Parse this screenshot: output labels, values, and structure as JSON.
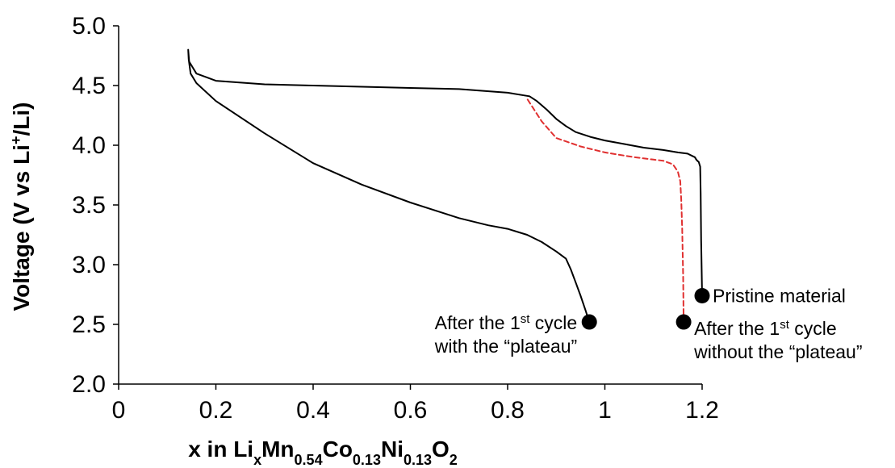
{
  "chart_data": {
    "type": "line",
    "xlabel": {
      "parts": [
        {
          "text": "x in Li",
          "sub": false
        },
        {
          "text": "x",
          "sub": true
        },
        {
          "text": "Mn",
          "sub": false
        },
        {
          "text": "0.54",
          "sub": true
        },
        {
          "text": "Co",
          "sub": false
        },
        {
          "text": "0.13",
          "sub": true
        },
        {
          "text": "Ni",
          "sub": false
        },
        {
          "text": "0.13",
          "sub": true
        },
        {
          "text": "O",
          "sub": false
        },
        {
          "text": "2",
          "sub": true
        }
      ]
    },
    "ylabel": {
      "before": "Voltage (V vs Li",
      "sup": "+",
      "after": "/Li)"
    },
    "xlim": [
      0,
      1.2
    ],
    "ylim": [
      2.0,
      5.0
    ],
    "xticks": [
      {
        "value": 0,
        "label": "0"
      },
      {
        "value": 0.2,
        "label": "0.2"
      },
      {
        "value": 0.4,
        "label": "0.4"
      },
      {
        "value": 0.6,
        "label": "0.6"
      },
      {
        "value": 0.8,
        "label": "0.8"
      },
      {
        "value": 1.0,
        "label": "1"
      },
      {
        "value": 1.2,
        "label": "1.2"
      }
    ],
    "yticks": [
      {
        "value": 2.0,
        "label": "2.0"
      },
      {
        "value": 2.5,
        "label": "2.5"
      },
      {
        "value": 3.0,
        "label": "3.0"
      },
      {
        "value": 3.5,
        "label": "3.5"
      },
      {
        "value": 4.0,
        "label": "4.0"
      },
      {
        "value": 4.5,
        "label": "4.5"
      },
      {
        "value": 5.0,
        "label": "5.0"
      }
    ],
    "grid": false,
    "series": [
      {
        "id": "cycle-with-plateau",
        "color": "#000000",
        "dash": false,
        "x": [
          1.2,
          1.198,
          1.197,
          1.196,
          1.193,
          1.19,
          1.188,
          1.185,
          1.18,
          1.17,
          1.15,
          1.12,
          1.08,
          1.04,
          1.0,
          0.97,
          0.94,
          0.92,
          0.9,
          0.88,
          0.86,
          0.845,
          0.8,
          0.7,
          0.6,
          0.5,
          0.4,
          0.3,
          0.2,
          0.16,
          0.145,
          0.143,
          0.144,
          0.148,
          0.16,
          0.2,
          0.3,
          0.4,
          0.5,
          0.6,
          0.7,
          0.76,
          0.8,
          0.84,
          0.87,
          0.9,
          0.92,
          0.93,
          0.94,
          0.95,
          0.96,
          0.968
        ],
        "y": [
          2.74,
          3.2,
          3.6,
          3.82,
          3.86,
          3.87,
          3.88,
          3.9,
          3.91,
          3.93,
          3.94,
          3.96,
          3.98,
          4.01,
          4.04,
          4.07,
          4.11,
          4.16,
          4.22,
          4.3,
          4.37,
          4.41,
          4.44,
          4.47,
          4.48,
          4.49,
          4.5,
          4.51,
          4.54,
          4.6,
          4.7,
          4.8,
          4.72,
          4.6,
          4.52,
          4.37,
          4.1,
          3.85,
          3.67,
          3.52,
          3.39,
          3.33,
          3.3,
          3.25,
          3.19,
          3.11,
          3.05,
          2.96,
          2.85,
          2.74,
          2.62,
          2.52
        ]
      },
      {
        "id": "cycle-without-plateau",
        "color": "#e03030",
        "dash": true,
        "x": [
          1.162,
          1.161,
          1.159,
          1.157,
          1.155,
          1.15,
          1.14,
          1.12,
          1.1,
          1.06,
          1.0,
          0.95,
          0.9,
          0.87,
          0.84
        ],
        "y": [
          2.52,
          2.9,
          3.3,
          3.55,
          3.7,
          3.78,
          3.84,
          3.87,
          3.88,
          3.9,
          3.94,
          3.99,
          4.06,
          4.2,
          4.39
        ]
      }
    ],
    "markers": [
      {
        "id": "pristine",
        "x": 1.2,
        "y": 2.74,
        "lines": [
          "Pristine material"
        ],
        "align": "right"
      },
      {
        "id": "with-plateau",
        "x": 0.968,
        "y": 2.52,
        "lines": [
          "After the 1st cycle",
          "with the “plateau”"
        ],
        "align": "left"
      },
      {
        "id": "without-plateau",
        "x": 1.162,
        "y": 2.52,
        "lines": [
          "After the 1st cycle",
          "without the “plateau”"
        ],
        "align": "below-right"
      }
    ]
  }
}
